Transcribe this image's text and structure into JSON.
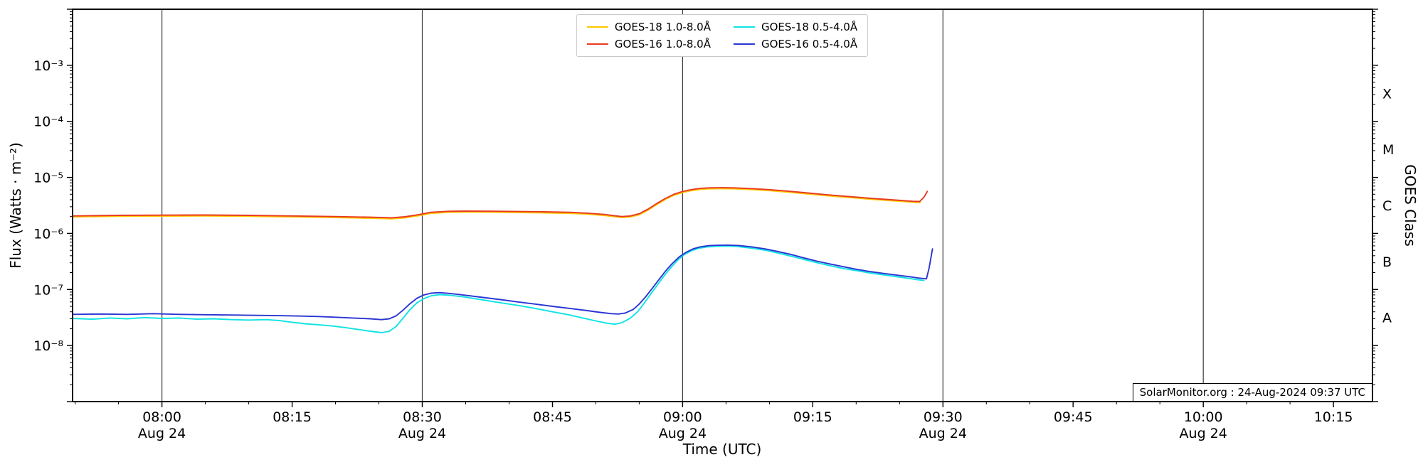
{
  "axes": {
    "x_label": "Time (UTC)",
    "y_left_label": "Flux (Watts · m⁻²)",
    "y_right_label": "GOES Class"
  },
  "watermark": "SolarMonitor.org : 24-Aug-2024 09:37 UTC",
  "chart_data": {
    "type": "line",
    "x_axis": {
      "label": "Time (UTC)",
      "units": "minutes after 08:00 UTC on 24-Aug-2024",
      "range_minutes": [
        -10.3,
        139.5
      ],
      "major_tick_minutes": [
        0,
        15,
        30,
        45,
        60,
        75,
        90,
        105,
        120,
        135
      ],
      "major_tick_labels": [
        "08:00",
        "08:15",
        "08:30",
        "08:45",
        "09:00",
        "09:15",
        "09:30",
        "09:45",
        "10:00",
        "10:15"
      ],
      "minor_tick_step_minutes": 5,
      "date_tick_minutes": [
        0,
        30,
        60,
        90,
        120
      ],
      "date_tick_label": "Aug 24",
      "gridline_minutes": [
        0,
        30,
        60,
        90,
        120
      ]
    },
    "y_axis": {
      "label": "Flux (Watts · m⁻²)",
      "scale": "log",
      "range": [
        1e-09,
        0.01
      ],
      "labeled_decades": [
        -3,
        -4,
        -5,
        -6,
        -7,
        -8
      ],
      "decade_labels": [
        "10⁻³",
        "10⁻⁴",
        "10⁻⁵",
        "10⁻⁶",
        "10⁻⁷",
        "10⁻⁸"
      ],
      "grid": false
    },
    "y_right_axis": {
      "label": "GOES Class",
      "class_labels": [
        {
          "label": "X",
          "log10_center": -3.5
        },
        {
          "label": "M",
          "log10_center": -4.5
        },
        {
          "label": "C",
          "log10_center": -5.5
        },
        {
          "label": "B",
          "log10_center": -6.5
        },
        {
          "label": "A",
          "log10_center": -7.5
        }
      ]
    },
    "legend_position": "top-center",
    "legend_columns": 2,
    "series": [
      {
        "name": "GOES-18 1.0-8.0Å",
        "color": "#ffc800",
        "points": [
          [
            -10.3,
            1.97e-06
          ],
          [
            -5,
            2.02e-06
          ],
          [
            0,
            2.04e-06
          ],
          [
            5,
            2.05e-06
          ],
          [
            10,
            2.02e-06
          ],
          [
            15,
            1.97e-06
          ],
          [
            20,
            1.92e-06
          ],
          [
            24,
            1.87e-06
          ],
          [
            26.5,
            1.82e-06
          ],
          [
            28,
            1.9e-06
          ],
          [
            29.5,
            2.06e-06
          ],
          [
            31,
            2.28e-06
          ],
          [
            33,
            2.38e-06
          ],
          [
            35,
            2.4e-06
          ],
          [
            38,
            2.39e-06
          ],
          [
            41,
            2.36e-06
          ],
          [
            44,
            2.33e-06
          ],
          [
            47,
            2.28e-06
          ],
          [
            49,
            2.21e-06
          ],
          [
            51,
            2.09e-06
          ],
          [
            52,
            2e-06
          ],
          [
            53,
            1.92e-06
          ],
          [
            54,
            1.97e-06
          ],
          [
            55,
            2.16e-06
          ],
          [
            56,
            2.59e-06
          ],
          [
            57,
            3.26e-06
          ],
          [
            58,
            4.03e-06
          ],
          [
            59,
            4.8e-06
          ],
          [
            60,
            5.38e-06
          ],
          [
            61,
            5.81e-06
          ],
          [
            62,
            6.1e-06
          ],
          [
            63,
            6.24e-06
          ],
          [
            64.5,
            6.29e-06
          ],
          [
            66,
            6.24e-06
          ],
          [
            68,
            6.05e-06
          ],
          [
            70,
            5.81e-06
          ],
          [
            72,
            5.47e-06
          ],
          [
            74,
            5.14e-06
          ],
          [
            76,
            4.8e-06
          ],
          [
            78,
            4.51e-06
          ],
          [
            80,
            4.27e-06
          ],
          [
            82,
            4.03e-06
          ],
          [
            84,
            3.84e-06
          ],
          [
            85.5,
            3.7e-06
          ],
          [
            86.5,
            3.6e-06
          ],
          [
            87.4,
            3.55e-06
          ]
        ]
      },
      {
        "name": "GOES-16 1.0-8.0Å",
        "color": "#e83b22",
        "points": [
          [
            -10.3,
            2.05e-06
          ],
          [
            -5,
            2.1e-06
          ],
          [
            0,
            2.12e-06
          ],
          [
            5,
            2.13e-06
          ],
          [
            10,
            2.1e-06
          ],
          [
            15,
            2.05e-06
          ],
          [
            20,
            2e-06
          ],
          [
            24,
            1.95e-06
          ],
          [
            26.5,
            1.9e-06
          ],
          [
            28,
            1.98e-06
          ],
          [
            29.5,
            2.15e-06
          ],
          [
            31,
            2.38e-06
          ],
          [
            33,
            2.48e-06
          ],
          [
            35,
            2.5e-06
          ],
          [
            38,
            2.49e-06
          ],
          [
            41,
            2.46e-06
          ],
          [
            44,
            2.43e-06
          ],
          [
            47,
            2.38e-06
          ],
          [
            49,
            2.3e-06
          ],
          [
            51,
            2.18e-06
          ],
          [
            52,
            2.08e-06
          ],
          [
            53,
            2e-06
          ],
          [
            54,
            2.05e-06
          ],
          [
            55,
            2.25e-06
          ],
          [
            56,
            2.7e-06
          ],
          [
            57,
            3.4e-06
          ],
          [
            58,
            4.2e-06
          ],
          [
            59,
            5e-06
          ],
          [
            60,
            5.6e-06
          ],
          [
            61,
            6.05e-06
          ],
          [
            62,
            6.35e-06
          ],
          [
            63,
            6.5e-06
          ],
          [
            64.5,
            6.55e-06
          ],
          [
            66,
            6.5e-06
          ],
          [
            68,
            6.3e-06
          ],
          [
            70,
            6.05e-06
          ],
          [
            72,
            5.7e-06
          ],
          [
            74,
            5.35e-06
          ],
          [
            76,
            5e-06
          ],
          [
            78,
            4.7e-06
          ],
          [
            80,
            4.45e-06
          ],
          [
            82,
            4.2e-06
          ],
          [
            84,
            4e-06
          ],
          [
            85.5,
            3.85e-06
          ],
          [
            86.5,
            3.75e-06
          ],
          [
            87.3,
            3.7e-06
          ],
          [
            87.8,
            4.4e-06
          ],
          [
            88.2,
            5.6e-06
          ]
        ]
      },
      {
        "name": "GOES-18 0.5-4.0Å",
        "color": "#0fe3e3",
        "points": [
          [
            -10.3,
            3.05e-08
          ],
          [
            -8,
            2.95e-08
          ],
          [
            -6,
            3.1e-08
          ],
          [
            -4,
            3e-08
          ],
          [
            -2,
            3.15e-08
          ],
          [
            0,
            3.05e-08
          ],
          [
            2,
            3.1e-08
          ],
          [
            4,
            2.95e-08
          ],
          [
            6,
            3e-08
          ],
          [
            8,
            2.9e-08
          ],
          [
            10,
            2.85e-08
          ],
          [
            12,
            2.9e-08
          ],
          [
            13.5,
            2.8e-08
          ],
          [
            15,
            2.6e-08
          ],
          [
            16.5,
            2.45e-08
          ],
          [
            18,
            2.35e-08
          ],
          [
            19.5,
            2.25e-08
          ],
          [
            21,
            2.1e-08
          ],
          [
            22.5,
            1.95e-08
          ],
          [
            24,
            1.8e-08
          ],
          [
            25.3,
            1.7e-08
          ],
          [
            26.2,
            1.8e-08
          ],
          [
            27,
            2.2e-08
          ],
          [
            27.8,
            3.1e-08
          ],
          [
            28.6,
            4.4e-08
          ],
          [
            29.4,
            5.8e-08
          ],
          [
            30.2,
            6.9e-08
          ],
          [
            31,
            7.7e-08
          ],
          [
            32,
            8.1e-08
          ],
          [
            33.2,
            7.9e-08
          ],
          [
            35,
            7.3e-08
          ],
          [
            37,
            6.5e-08
          ],
          [
            39,
            5.8e-08
          ],
          [
            41,
            5.2e-08
          ],
          [
            43,
            4.6e-08
          ],
          [
            45,
            4e-08
          ],
          [
            47,
            3.5e-08
          ],
          [
            48.5,
            3.1e-08
          ],
          [
            50,
            2.75e-08
          ],
          [
            51.3,
            2.5e-08
          ],
          [
            52.2,
            2.4e-08
          ],
          [
            53,
            2.55e-08
          ],
          [
            54,
            3.1e-08
          ],
          [
            54.8,
            4e-08
          ],
          [
            55.5,
            5.5e-08
          ],
          [
            56.2,
            7.8e-08
          ],
          [
            57,
            1.15e-07
          ],
          [
            57.8,
            1.7e-07
          ],
          [
            58.6,
            2.4e-07
          ],
          [
            59.4,
            3.3e-07
          ],
          [
            60.2,
            4.2e-07
          ],
          [
            61,
            4.9e-07
          ],
          [
            61.8,
            5.4e-07
          ],
          [
            62.8,
            5.75e-07
          ],
          [
            63.8,
            5.9e-07
          ],
          [
            65,
            5.95e-07
          ],
          [
            66.3,
            5.85e-07
          ],
          [
            67.8,
            5.5e-07
          ],
          [
            69.3,
            5.1e-07
          ],
          [
            70.8,
            4.55e-07
          ],
          [
            72.3,
            4e-07
          ],
          [
            73.8,
            3.5e-07
          ],
          [
            75.3,
            3.05e-07
          ],
          [
            76.8,
            2.7e-07
          ],
          [
            78.3,
            2.4e-07
          ],
          [
            79.8,
            2.2e-07
          ],
          [
            81.3,
            2e-07
          ],
          [
            82.8,
            1.85e-07
          ],
          [
            84.3,
            1.72e-07
          ],
          [
            85.8,
            1.6e-07
          ],
          [
            87,
            1.5e-07
          ],
          [
            87.8,
            1.45e-07
          ]
        ]
      },
      {
        "name": "GOES-16 0.5-4.0Å",
        "color": "#2a35d4",
        "points": [
          [
            -10.3,
            3.6e-08
          ],
          [
            -7,
            3.65e-08
          ],
          [
            -4,
            3.6e-08
          ],
          [
            -1,
            3.7e-08
          ],
          [
            2,
            3.6e-08
          ],
          [
            5,
            3.55e-08
          ],
          [
            8,
            3.5e-08
          ],
          [
            11,
            3.45e-08
          ],
          [
            14,
            3.4e-08
          ],
          [
            16,
            3.35e-08
          ],
          [
            18,
            3.3e-08
          ],
          [
            20,
            3.2e-08
          ],
          [
            22,
            3.1e-08
          ],
          [
            24,
            3e-08
          ],
          [
            25.3,
            2.9e-08
          ],
          [
            26.2,
            3e-08
          ],
          [
            27,
            3.4e-08
          ],
          [
            27.8,
            4.3e-08
          ],
          [
            28.6,
            5.6e-08
          ],
          [
            29.4,
            7e-08
          ],
          [
            30.2,
            8e-08
          ],
          [
            31,
            8.6e-08
          ],
          [
            32,
            8.8e-08
          ],
          [
            33.2,
            8.5e-08
          ],
          [
            35,
            7.9e-08
          ],
          [
            37,
            7.2e-08
          ],
          [
            39,
            6.6e-08
          ],
          [
            41,
            6e-08
          ],
          [
            43,
            5.5e-08
          ],
          [
            45,
            5e-08
          ],
          [
            47,
            4.6e-08
          ],
          [
            49,
            4.2e-08
          ],
          [
            50.5,
            3.9e-08
          ],
          [
            51.8,
            3.7e-08
          ],
          [
            52.6,
            3.65e-08
          ],
          [
            53.4,
            3.8e-08
          ],
          [
            54.3,
            4.4e-08
          ],
          [
            55,
            5.5e-08
          ],
          [
            55.7,
            7.3e-08
          ],
          [
            56.4,
            1e-07
          ],
          [
            57.2,
            1.45e-07
          ],
          [
            58,
            2.1e-07
          ],
          [
            58.8,
            2.9e-07
          ],
          [
            59.6,
            3.8e-07
          ],
          [
            60.4,
            4.6e-07
          ],
          [
            61.2,
            5.3e-07
          ],
          [
            62,
            5.75e-07
          ],
          [
            63,
            6.05e-07
          ],
          [
            64,
            6.15e-07
          ],
          [
            65.2,
            6.2e-07
          ],
          [
            66.5,
            6.1e-07
          ],
          [
            68,
            5.75e-07
          ],
          [
            69.5,
            5.3e-07
          ],
          [
            71,
            4.75e-07
          ],
          [
            72.5,
            4.2e-07
          ],
          [
            74,
            3.65e-07
          ],
          [
            75.5,
            3.2e-07
          ],
          [
            77,
            2.85e-07
          ],
          [
            78.5,
            2.55e-07
          ],
          [
            80,
            2.3e-07
          ],
          [
            81.5,
            2.1e-07
          ],
          [
            83,
            1.95e-07
          ],
          [
            84.5,
            1.82e-07
          ],
          [
            86,
            1.7e-07
          ],
          [
            87.2,
            1.6e-07
          ],
          [
            88.1,
            1.55e-07
          ],
          [
            88.4,
            2.4e-07
          ],
          [
            88.8,
            5.3e-07
          ]
        ]
      }
    ]
  }
}
